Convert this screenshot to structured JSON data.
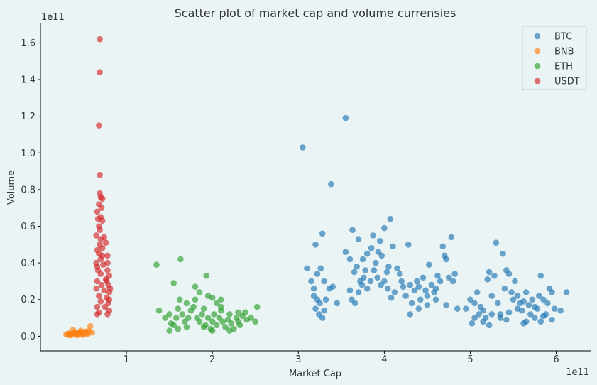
{
  "chart_data": {
    "type": "scatter",
    "title": "Scatter plot of market cap and volume currensies",
    "xlabel": "Market Cap",
    "ylabel": "Volume",
    "x_offset_label": "1e11",
    "y_offset_label": "1e11",
    "xlim": [
      0.0,
      6.4
    ],
    "ylim": [
      -0.08,
      1.71
    ],
    "x_ticks": [
      1,
      2,
      3,
      4,
      5,
      6
    ],
    "y_ticks": [
      0.0,
      0.2,
      0.4,
      0.6,
      0.8,
      1.0,
      1.2,
      1.4,
      1.6
    ],
    "x_tick_labels": [
      "1",
      "2",
      "3",
      "4",
      "5",
      "6"
    ],
    "y_tick_labels": [
      "0.0",
      "0.2",
      "0.4",
      "0.6",
      "0.8",
      "1.0",
      "1.2",
      "1.4",
      "1.6"
    ],
    "grid": false,
    "legend_position": "top-right",
    "series": [
      {
        "name": "BTC",
        "color": "#1f77b4",
        "points": [
          [
            3.55,
            1.19
          ],
          [
            3.05,
            1.03
          ],
          [
            3.38,
            0.83
          ],
          [
            3.1,
            0.37
          ],
          [
            3.2,
            0.5
          ],
          [
            3.28,
            0.56
          ],
          [
            3.22,
            0.34
          ],
          [
            3.26,
            0.37
          ],
          [
            3.15,
            0.3
          ],
          [
            3.18,
            0.22
          ],
          [
            3.22,
            0.2
          ],
          [
            3.25,
            0.18
          ],
          [
            3.2,
            0.15
          ],
          [
            3.3,
            0.14
          ],
          [
            3.28,
            0.1
          ],
          [
            3.24,
            0.12
          ],
          [
            3.32,
            0.2
          ],
          [
            3.36,
            0.26
          ],
          [
            3.4,
            0.27
          ],
          [
            3.45,
            0.18
          ],
          [
            3.18,
            0.26
          ],
          [
            3.3,
            0.3
          ],
          [
            3.55,
            0.46
          ],
          [
            3.63,
            0.58
          ],
          [
            3.6,
            0.42
          ],
          [
            3.65,
            0.35
          ],
          [
            3.7,
            0.53
          ],
          [
            3.68,
            0.38
          ],
          [
            3.72,
            0.3
          ],
          [
            3.75,
            0.42
          ],
          [
            3.78,
            0.36
          ],
          [
            3.8,
            0.45
          ],
          [
            3.85,
            0.48
          ],
          [
            3.87,
            0.55
          ],
          [
            3.9,
            0.4
          ],
          [
            3.93,
            0.46
          ],
          [
            3.95,
            0.52
          ],
          [
            3.97,
            0.44
          ],
          [
            4.0,
            0.59
          ],
          [
            4.05,
            0.38
          ],
          [
            4.07,
            0.64
          ],
          [
            4.1,
            0.49
          ],
          [
            4.03,
            0.35
          ],
          [
            4.15,
            0.37
          ],
          [
            4.18,
            0.34
          ],
          [
            4.2,
            0.3
          ],
          [
            3.6,
            0.25
          ],
          [
            3.62,
            0.2
          ],
          [
            3.66,
            0.18
          ],
          [
            3.7,
            0.24
          ],
          [
            3.74,
            0.28
          ],
          [
            3.76,
            0.32
          ],
          [
            3.8,
            0.26
          ],
          [
            3.84,
            0.3
          ],
          [
            3.88,
            0.36
          ],
          [
            3.92,
            0.32
          ],
          [
            3.96,
            0.28
          ],
          [
            4.0,
            0.3
          ],
          [
            4.04,
            0.26
          ],
          [
            4.08,
            0.21
          ],
          [
            4.12,
            0.24
          ],
          [
            4.22,
            0.27
          ],
          [
            4.25,
            0.22
          ],
          [
            4.28,
            0.5
          ],
          [
            4.3,
            0.28
          ],
          [
            4.32,
            0.18
          ],
          [
            4.35,
            0.25
          ],
          [
            4.38,
            0.3
          ],
          [
            4.4,
            0.27
          ],
          [
            4.42,
            0.2
          ],
          [
            4.45,
            0.32
          ],
          [
            4.48,
            0.25
          ],
          [
            4.5,
            0.22
          ],
          [
            4.52,
            0.39
          ],
          [
            4.55,
            0.28
          ],
          [
            4.58,
            0.24
          ],
          [
            4.6,
            0.26
          ],
          [
            4.62,
            0.33
          ],
          [
            4.65,
            0.3
          ],
          [
            4.68,
            0.49
          ],
          [
            4.7,
            0.44
          ],
          [
            4.72,
            0.42
          ],
          [
            4.75,
            0.32
          ],
          [
            4.78,
            0.54
          ],
          [
            4.8,
            0.3
          ],
          [
            4.82,
            0.34
          ],
          [
            4.3,
            0.12
          ],
          [
            4.4,
            0.15
          ],
          [
            4.5,
            0.17
          ],
          [
            4.6,
            0.2
          ],
          [
            4.72,
            0.17
          ],
          [
            4.85,
            0.15
          ],
          [
            4.95,
            0.15
          ],
          [
            5.0,
            0.2
          ],
          [
            5.05,
            0.18
          ],
          [
            5.08,
            0.24
          ],
          [
            5.1,
            0.12
          ],
          [
            5.12,
            0.16
          ],
          [
            5.15,
            0.14
          ],
          [
            5.18,
            0.1
          ],
          [
            5.2,
            0.31
          ],
          [
            5.22,
            0.35
          ],
          [
            5.25,
            0.22
          ],
          [
            5.28,
            0.33
          ],
          [
            5.3,
            0.51
          ],
          [
            5.32,
            0.18
          ],
          [
            5.35,
            0.12
          ],
          [
            5.38,
            0.45
          ],
          [
            5.4,
            0.26
          ],
          [
            5.42,
            0.36
          ],
          [
            5.45,
            0.34
          ],
          [
            5.48,
            0.24
          ],
          [
            5.5,
            0.2
          ],
          [
            5.52,
            0.3
          ],
          [
            5.55,
            0.22
          ],
          [
            5.58,
            0.18
          ],
          [
            5.6,
            0.14
          ],
          [
            5.62,
            0.19
          ],
          [
            5.65,
            0.24
          ],
          [
            5.68,
            0.17
          ],
          [
            5.7,
            0.12
          ],
          [
            5.72,
            0.2
          ],
          [
            5.75,
            0.16
          ],
          [
            5.78,
            0.15
          ],
          [
            5.8,
            0.22
          ],
          [
            5.82,
            0.33
          ],
          [
            5.85,
            0.2
          ],
          [
            5.88,
            0.12
          ],
          [
            5.9,
            0.18
          ],
          [
            5.92,
            0.26
          ],
          [
            5.95,
            0.24
          ],
          [
            5.98,
            0.15
          ],
          [
            6.05,
            0.14
          ],
          [
            6.12,
            0.24
          ],
          [
            5.05,
            0.1
          ],
          [
            5.15,
            0.08
          ],
          [
            5.25,
            0.12
          ],
          [
            5.35,
            0.1
          ],
          [
            5.45,
            0.13
          ],
          [
            5.55,
            0.15
          ],
          [
            5.65,
            0.08
          ],
          [
            5.75,
            0.1
          ],
          [
            5.85,
            0.11
          ],
          [
            5.95,
            0.09
          ],
          [
            5.02,
            0.07
          ],
          [
            5.22,
            0.06
          ],
          [
            5.42,
            0.09
          ],
          [
            5.62,
            0.07
          ],
          [
            5.82,
            0.08
          ]
        ]
      },
      {
        "name": "BNB",
        "color": "#ff7f0e",
        "points": [
          [
            0.3,
            0.01
          ],
          [
            0.32,
            0.008
          ],
          [
            0.34,
            0.012
          ],
          [
            0.36,
            0.01
          ],
          [
            0.38,
            0.015
          ],
          [
            0.4,
            0.02
          ],
          [
            0.42,
            0.012
          ],
          [
            0.44,
            0.018
          ],
          [
            0.46,
            0.022
          ],
          [
            0.48,
            0.014
          ],
          [
            0.5,
            0.02
          ],
          [
            0.52,
            0.025
          ],
          [
            0.54,
            0.018
          ],
          [
            0.56,
            0.03
          ],
          [
            0.58,
            0.055
          ],
          [
            0.6,
            0.02
          ],
          [
            0.35,
            0.005
          ],
          [
            0.45,
            0.008
          ],
          [
            0.55,
            0.012
          ],
          [
            0.38,
            0.035
          ],
          [
            0.47,
            0.03
          ],
          [
            0.42,
            0.006
          ],
          [
            0.5,
            0.007
          ],
          [
            0.33,
            0.015
          ]
        ]
      },
      {
        "name": "ETH",
        "color": "#2ca02c",
        "points": [
          [
            1.35,
            0.39
          ],
          [
            1.63,
            0.42
          ],
          [
            1.55,
            0.29
          ],
          [
            1.93,
            0.33
          ],
          [
            1.8,
            0.27
          ],
          [
            1.85,
            0.24
          ],
          [
            1.95,
            0.22
          ],
          [
            2.0,
            0.21
          ],
          [
            2.05,
            0.18
          ],
          [
            2.1,
            0.2
          ],
          [
            1.38,
            0.14
          ],
          [
            1.45,
            0.1
          ],
          [
            1.5,
            0.12
          ],
          [
            1.52,
            0.07
          ],
          [
            1.55,
            0.06
          ],
          [
            1.58,
            0.1
          ],
          [
            1.6,
            0.15
          ],
          [
            1.62,
            0.2
          ],
          [
            1.65,
            0.12
          ],
          [
            1.68,
            0.08
          ],
          [
            1.7,
            0.18
          ],
          [
            1.72,
            0.1
          ],
          [
            1.75,
            0.14
          ],
          [
            1.78,
            0.16
          ],
          [
            1.8,
            0.2
          ],
          [
            1.82,
            0.1
          ],
          [
            1.85,
            0.08
          ],
          [
            1.88,
            0.12
          ],
          [
            1.9,
            0.15
          ],
          [
            1.92,
            0.06
          ],
          [
            1.95,
            0.1
          ],
          [
            1.98,
            0.04
          ],
          [
            2.0,
            0.08
          ],
          [
            2.02,
            0.12
          ],
          [
            2.05,
            0.06
          ],
          [
            2.08,
            0.1
          ],
          [
            2.1,
            0.14
          ],
          [
            2.12,
            0.08
          ],
          [
            2.15,
            0.05
          ],
          [
            2.18,
            0.09
          ],
          [
            2.2,
            0.12
          ],
          [
            2.22,
            0.07
          ],
          [
            2.25,
            0.04
          ],
          [
            2.28,
            0.1
          ],
          [
            2.3,
            0.08
          ],
          [
            2.32,
            0.06
          ],
          [
            2.35,
            0.11
          ],
          [
            2.38,
            0.13
          ],
          [
            2.4,
            0.09
          ],
          [
            2.45,
            0.1
          ],
          [
            2.5,
            0.08
          ],
          [
            2.52,
            0.16
          ],
          [
            2.3,
            0.13
          ],
          [
            2.1,
            0.16
          ],
          [
            1.9,
            0.05
          ],
          [
            1.7,
            0.05
          ],
          [
            1.5,
            0.03
          ],
          [
            2.2,
            0.03
          ],
          [
            2.0,
            0.03
          ],
          [
            1.6,
            0.04
          ]
        ]
      },
      {
        "name": "USDT",
        "color": "#d62728",
        "points": [
          [
            0.69,
            1.62
          ],
          [
            0.69,
            1.44
          ],
          [
            0.68,
            1.15
          ],
          [
            0.69,
            0.88
          ],
          [
            0.69,
            0.78
          ],
          [
            0.7,
            0.76
          ],
          [
            0.72,
            0.75
          ],
          [
            0.68,
            0.72
          ],
          [
            0.66,
            0.68
          ],
          [
            0.7,
            0.65
          ],
          [
            0.72,
            0.63
          ],
          [
            0.68,
            0.6
          ],
          [
            0.65,
            0.55
          ],
          [
            0.7,
            0.53
          ],
          [
            0.74,
            0.54
          ],
          [
            0.69,
            0.5
          ],
          [
            0.66,
            0.47
          ],
          [
            0.72,
            0.48
          ],
          [
            0.76,
            0.51
          ],
          [
            0.68,
            0.45
          ],
          [
            0.7,
            0.42
          ],
          [
            0.78,
            0.44
          ],
          [
            0.65,
            0.4
          ],
          [
            0.73,
            0.39
          ],
          [
            0.67,
            0.36
          ],
          [
            0.78,
            0.36
          ],
          [
            0.7,
            0.34
          ],
          [
            0.8,
            0.33
          ],
          [
            0.66,
            0.3
          ],
          [
            0.76,
            0.31
          ],
          [
            0.71,
            0.28
          ],
          [
            0.79,
            0.28
          ],
          [
            0.65,
            0.26
          ],
          [
            0.74,
            0.25
          ],
          [
            0.8,
            0.24
          ],
          [
            0.68,
            0.22
          ],
          [
            0.77,
            0.21
          ],
          [
            0.7,
            0.19
          ],
          [
            0.79,
            0.18
          ],
          [
            0.66,
            0.16
          ],
          [
            0.75,
            0.16
          ],
          [
            0.8,
            0.14
          ],
          [
            0.68,
            0.13
          ],
          [
            0.78,
            0.12
          ],
          [
            0.66,
            0.12
          ],
          [
            0.8,
            0.2
          ],
          [
            0.81,
            0.26
          ],
          [
            0.77,
            0.3
          ],
          [
            0.78,
            0.4
          ],
          [
            0.66,
            0.38
          ],
          [
            0.72,
            0.44
          ],
          [
            0.69,
            0.58
          ],
          [
            0.71,
            0.7
          ],
          [
            0.67,
            0.64
          ]
        ]
      }
    ]
  }
}
